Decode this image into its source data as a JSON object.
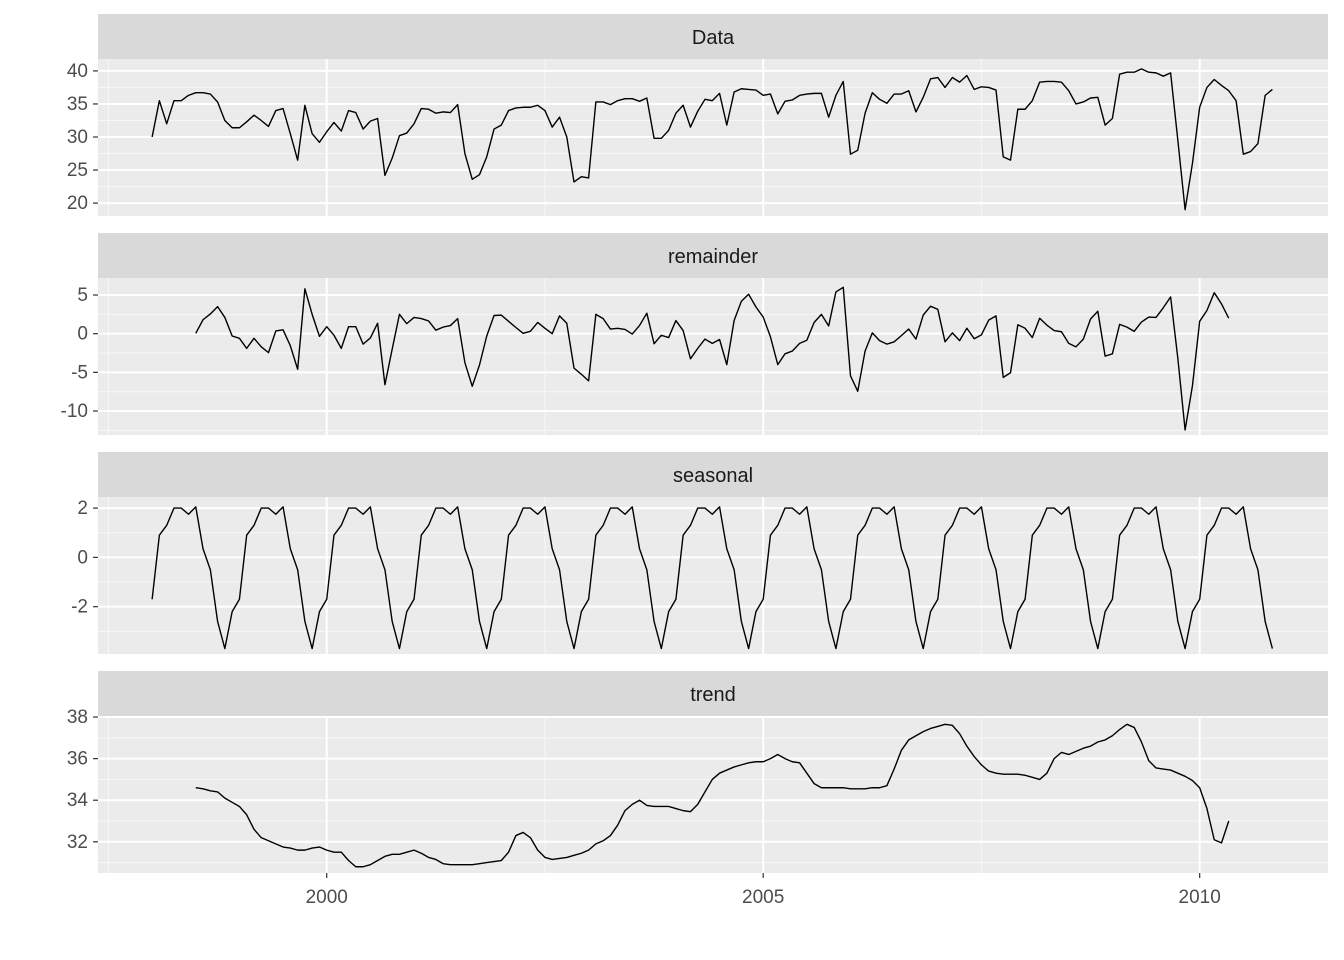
{
  "chart_data": {
    "type": "line",
    "x": [
      1998,
      1998.083,
      1998.167,
      1998.25,
      1998.333,
      1998.417,
      1998.5,
      1998.583,
      1998.667,
      1998.75,
      1998.833,
      1998.917,
      1999,
      1999.083,
      1999.167,
      1999.25,
      1999.333,
      1999.417,
      1999.5,
      1999.583,
      1999.667,
      1999.75,
      1999.833,
      1999.917,
      2000,
      2000.083,
      2000.167,
      2000.25,
      2000.333,
      2000.417,
      2000.5,
      2000.583,
      2000.667,
      2000.75,
      2000.833,
      2000.917,
      2001,
      2001.083,
      2001.167,
      2001.25,
      2001.333,
      2001.417,
      2001.5,
      2001.583,
      2001.667,
      2001.75,
      2001.833,
      2001.917,
      2002,
      2002.083,
      2002.167,
      2002.25,
      2002.333,
      2002.417,
      2002.5,
      2002.583,
      2002.667,
      2002.75,
      2002.833,
      2002.917,
      2003,
      2003.083,
      2003.167,
      2003.25,
      2003.333,
      2003.417,
      2003.5,
      2003.583,
      2003.667,
      2003.75,
      2003.833,
      2003.917,
      2004,
      2004.083,
      2004.167,
      2004.25,
      2004.333,
      2004.417,
      2004.5,
      2004.583,
      2004.667,
      2004.75,
      2004.833,
      2004.917,
      2005,
      2005.083,
      2005.167,
      2005.25,
      2005.333,
      2005.417,
      2005.5,
      2005.583,
      2005.667,
      2005.75,
      2005.833,
      2005.917,
      2006,
      2006.083,
      2006.167,
      2006.25,
      2006.333,
      2006.417,
      2006.5,
      2006.583,
      2006.667,
      2006.75,
      2006.833,
      2006.917,
      2007,
      2007.083,
      2007.167,
      2007.25,
      2007.333,
      2007.417,
      2007.5,
      2007.583,
      2007.667,
      2007.75,
      2007.833,
      2007.917,
      2008,
      2008.083,
      2008.167,
      2008.25,
      2008.333,
      2008.417,
      2008.5,
      2008.583,
      2008.667,
      2008.75,
      2008.833,
      2008.917,
      2009,
      2009.083,
      2009.167,
      2009.25,
      2009.333,
      2009.417,
      2009.5,
      2009.583,
      2009.667,
      2009.75,
      2009.833,
      2009.917,
      2010,
      2010.083,
      2010.167,
      2010.25,
      2010.333,
      2010.417,
      2010.5,
      2010.583,
      2010.667,
      2010.75,
      2010.833
    ],
    "xlim": [
      1997.38,
      2011.47
    ],
    "xticks": [
      2000,
      2005,
      2010
    ],
    "xminorticks": [
      1997.5,
      2002.5,
      2007.5
    ],
    "grid": true,
    "series": [
      {
        "name": "Data",
        "color": "#000000",
        "ylim": [
          18.05,
          41.8
        ],
        "yticks": [
          20,
          25,
          30,
          35,
          40
        ],
        "yminorticks": [
          22.5,
          27.5,
          32.5,
          37.5
        ],
        "values": [
          30,
          35.5,
          32,
          35.5,
          35.5,
          36.3,
          36.7,
          36.7,
          36.5,
          35.3,
          32.5,
          31.4,
          31.4,
          32.3,
          33.3,
          32.5,
          31.6,
          34.0,
          34.3,
          30.5,
          26.5,
          34.8,
          30.5,
          29.2,
          30.8,
          32.2,
          30.9,
          34.0,
          33.7,
          31.2,
          32.4,
          32.8,
          24.2,
          26.8,
          30.2,
          30.6,
          32.0,
          34.3,
          34.2,
          33.6,
          33.8,
          33.7,
          34.9,
          27.5,
          23.6,
          24.3,
          27.0,
          31.2,
          31.8,
          34.0,
          34.4,
          34.5,
          34.5,
          34.8,
          34.0,
          31.5,
          33.0,
          30.0,
          23.2,
          24.0,
          23.8,
          35.3,
          35.3,
          34.9,
          35.5,
          35.8,
          35.8,
          35.4,
          35.9,
          29.8,
          29.8,
          31.0,
          33.6,
          34.8,
          31.5,
          33.9,
          35.7,
          35.5,
          36.6,
          31.8,
          36.8,
          37.3,
          37.2,
          37.1,
          36.3,
          36.5,
          33.5,
          35.4,
          35.6,
          36.3,
          36.5,
          36.6,
          36.6,
          33.0,
          36.3,
          38.4,
          27.4,
          28.0,
          33.6,
          36.7,
          35.7,
          35.1,
          36.5,
          36.5,
          37.0,
          33.8,
          36.0,
          38.8,
          39.0,
          37.5,
          39.0,
          38.3,
          39.3,
          37.2,
          37.6,
          37.5,
          37.1,
          27.0,
          26.5,
          34.2,
          34.2,
          35.5,
          38.3,
          38.4,
          38.4,
          38.3,
          37.0,
          35.0,
          35.3,
          35.9,
          36.0,
          31.8,
          32.8,
          39.5,
          39.8,
          39.8,
          40.3,
          39.8,
          39.7,
          39.2,
          39.7,
          29.5,
          19.0,
          26.0,
          34.5,
          37.5,
          38.7,
          37.8,
          37.0,
          35.5,
          27.4,
          27.8,
          29.0,
          36.3,
          37.2
        ]
      },
      {
        "name": "remainder",
        "color": "#000000",
        "ylim": [
          -13.1,
          7.2
        ],
        "yticks": [
          -10,
          -5,
          0,
          5
        ],
        "yminorticks": [
          -12.5,
          -7.5,
          -2.5,
          2.5
        ],
        "values": [
          null,
          null,
          null,
          null,
          null,
          null,
          0.05,
          1.8,
          2.55,
          3.5,
          2.1,
          -0.3,
          -0.6,
          -1.9,
          -0.6,
          -1.7,
          -2.45,
          0.35,
          0.5,
          -1.55,
          -4.6,
          5.8,
          2.5,
          -0.35,
          0.9,
          -0.2,
          -1.9,
          0.9,
          0.9,
          -1.35,
          -0.55,
          1.35,
          -6.6,
          -2.0,
          2.5,
          1.3,
          2.1,
          1.95,
          1.65,
          0.45,
          0.85,
          1.05,
          1.95,
          -3.75,
          -6.8,
          -4.05,
          -0.3,
          2.35,
          2.4,
          1.6,
          0.8,
          0.05,
          0.3,
          1.45,
          0.7,
          0.0,
          2.3,
          1.35,
          -4.45,
          -5.25,
          -6.1,
          2.5,
          1.95,
          0.6,
          0.7,
          0.55,
          -0.05,
          1.05,
          2.65,
          -1.3,
          -0.2,
          -0.5,
          1.7,
          0.4,
          -3.25,
          -1.9,
          -0.7,
          -1.25,
          -0.75,
          -4.0,
          1.7,
          4.2,
          5.1,
          3.45,
          2.15,
          -0.4,
          -4.0,
          -2.6,
          -2.25,
          -1.25,
          -0.85,
          1.45,
          2.5,
          1.0,
          5.4,
          6.0,
          -5.45,
          -7.45,
          -2.25,
          0.1,
          -0.9,
          -1.35,
          -1.05,
          -0.25,
          0.6,
          -0.7,
          2.4,
          3.55,
          3.15,
          -1.05,
          0.1,
          -0.9,
          0.7,
          -0.65,
          -0.15,
          1.75,
          2.3,
          -5.65,
          -5.05,
          1.15,
          0.7,
          -0.5,
          2.0,
          1.1,
          0.4,
          0.25,
          -1.25,
          -1.7,
          -0.7,
          1.9,
          2.9,
          -2.9,
          -2.6,
          1.2,
          0.85,
          0.3,
          1.5,
          2.15,
          2.1,
          3.35,
          4.75,
          -3.2,
          -12.45,
          -6.75,
          1.6,
          3.0,
          5.3,
          3.85,
          2.0,
          null,
          null,
          null,
          null,
          null,
          null
        ]
      },
      {
        "name": "seasonal",
        "color": "#000000",
        "ylim": [
          -3.92,
          2.45
        ],
        "yticks": [
          -2,
          0,
          2
        ],
        "yminorticks": [
          -3,
          -1,
          1
        ],
        "values": [
          -1.7,
          0.9,
          1.3,
          2,
          2,
          1.75,
          2.05,
          0.35,
          -0.5,
          -2.6,
          -3.7,
          -2.2,
          -1.7,
          0.9,
          1.3,
          2,
          2,
          1.75,
          2.05,
          0.35,
          -0.5,
          -2.6,
          -3.7,
          -2.2,
          -1.7,
          0.9,
          1.3,
          2,
          2,
          1.75,
          2.05,
          0.35,
          -0.5,
          -2.6,
          -3.7,
          -2.2,
          -1.7,
          0.9,
          1.3,
          2,
          2,
          1.75,
          2.05,
          0.35,
          -0.5,
          -2.6,
          -3.7,
          -2.2,
          -1.7,
          0.9,
          1.3,
          2,
          2,
          1.75,
          2.05,
          0.35,
          -0.5,
          -2.6,
          -3.7,
          -2.2,
          -1.7,
          0.9,
          1.3,
          2,
          2,
          1.75,
          2.05,
          0.35,
          -0.5,
          -2.6,
          -3.7,
          -2.2,
          -1.7,
          0.9,
          1.3,
          2,
          2,
          1.75,
          2.05,
          0.35,
          -0.5,
          -2.6,
          -3.7,
          -2.2,
          -1.7,
          0.9,
          1.3,
          2,
          2,
          1.75,
          2.05,
          0.35,
          -0.5,
          -2.6,
          -3.7,
          -2.2,
          -1.7,
          0.9,
          1.3,
          2,
          2,
          1.75,
          2.05,
          0.35,
          -0.5,
          -2.6,
          -3.7,
          -2.2,
          -1.7,
          0.9,
          1.3,
          2,
          2,
          1.75,
          2.05,
          0.35,
          -0.5,
          -2.6,
          -3.7,
          -2.2,
          -1.7,
          0.9,
          1.3,
          2,
          2,
          1.75,
          2.05,
          0.35,
          -0.5,
          -2.6,
          -3.7,
          -2.2,
          -1.7,
          0.9,
          1.3,
          2,
          2,
          1.75,
          2.05,
          0.35,
          -0.5,
          -2.6,
          -3.7,
          -2.2,
          -1.7,
          0.9,
          1.3,
          2,
          2,
          1.75,
          2.05,
          0.35,
          -0.5,
          -2.6,
          -3.7
        ]
      },
      {
        "name": "trend",
        "color": "#000000",
        "ylim": [
          30.5,
          38.05
        ],
        "yticks": [
          32,
          34,
          36,
          38
        ],
        "yminorticks": [
          31,
          33,
          35,
          37
        ],
        "values": [
          null,
          null,
          null,
          null,
          null,
          null,
          34.6,
          34.55,
          34.45,
          34.4,
          34.1,
          33.9,
          33.7,
          33.3,
          32.6,
          32.2,
          32.05,
          31.9,
          31.75,
          31.7,
          31.6,
          31.6,
          31.7,
          31.75,
          31.6,
          31.5,
          31.5,
          31.1,
          30.8,
          30.8,
          30.9,
          31.1,
          31.3,
          31.4,
          31.4,
          31.5,
          31.6,
          31.45,
          31.25,
          31.15,
          30.95,
          30.9,
          30.9,
          30.9,
          30.9,
          30.95,
          31.0,
          31.05,
          31.1,
          31.5,
          32.3,
          32.45,
          32.2,
          31.6,
          31.25,
          31.15,
          31.2,
          31.25,
          31.35,
          31.45,
          31.6,
          31.9,
          32.05,
          32.3,
          32.8,
          33.5,
          33.8,
          34.0,
          33.75,
          33.7,
          33.7,
          33.7,
          33.6,
          33.5,
          33.45,
          33.8,
          34.4,
          35.0,
          35.3,
          35.45,
          35.6,
          35.7,
          35.8,
          35.85,
          35.85,
          36.0,
          36.2,
          36.0,
          35.85,
          35.8,
          35.3,
          34.8,
          34.6,
          34.6,
          34.6,
          34.6,
          34.55,
          34.55,
          34.55,
          34.6,
          34.6,
          34.7,
          35.5,
          36.4,
          36.9,
          37.1,
          37.3,
          37.45,
          37.55,
          37.65,
          37.6,
          37.2,
          36.6,
          36.1,
          35.7,
          35.4,
          35.3,
          35.25,
          35.25,
          35.25,
          35.2,
          35.1,
          35.0,
          35.3,
          36.0,
          36.3,
          36.2,
          36.35,
          36.5,
          36.6,
          36.8,
          36.9,
          37.1,
          37.4,
          37.65,
          37.5,
          36.8,
          35.9,
          35.55,
          35.5,
          35.45,
          35.3,
          35.15,
          34.95,
          34.6,
          33.6,
          32.1,
          31.95,
          33.0,
          null,
          null,
          null,
          null,
          null,
          null
        ]
      }
    ]
  }
}
